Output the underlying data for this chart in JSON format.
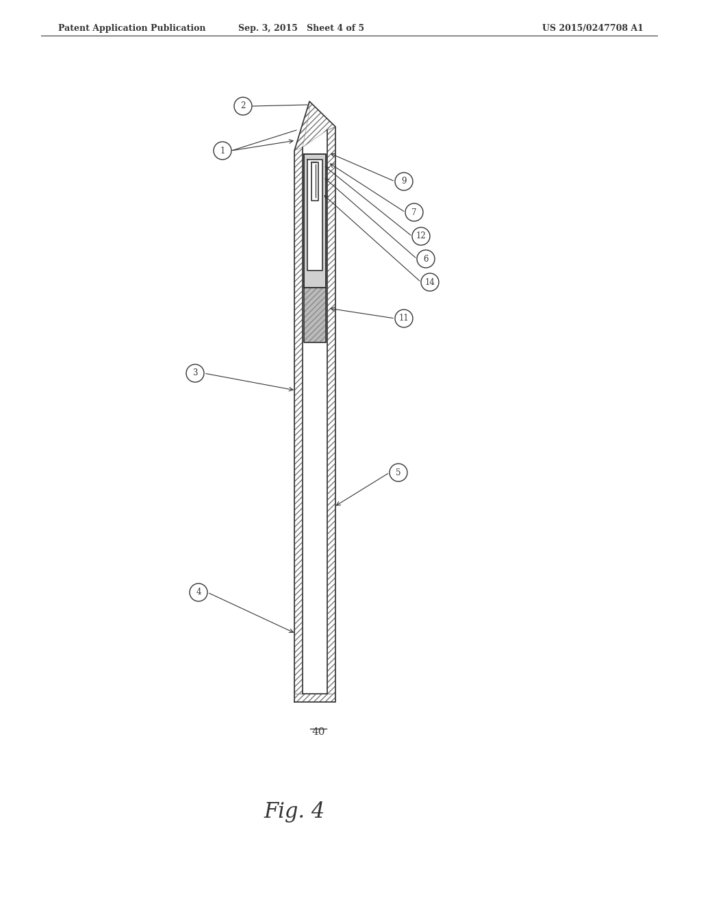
{
  "header_left": "Patent Application Publication",
  "header_center": "Sep. 3, 2015   Sheet 4 of 5",
  "header_right": "US 2015/0247708 A1",
  "fig_label": "Fig. 4",
  "fig_number": "40",
  "bg_color": "#ffffff",
  "line_color": "#333333"
}
